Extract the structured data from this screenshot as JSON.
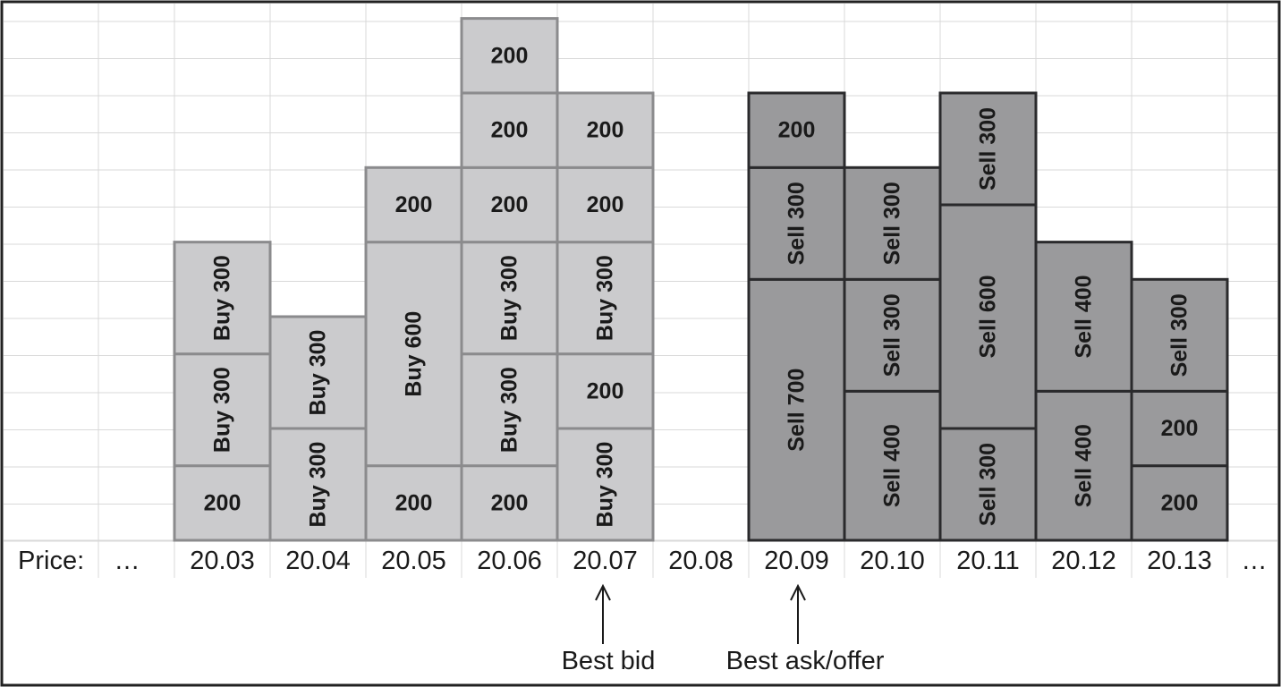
{
  "price_axis": {
    "label": "Price:",
    "left_ellipsis": "…",
    "right_ellipsis": "…",
    "prices": [
      "20.03",
      "20.04",
      "20.05",
      "20.06",
      "20.07",
      "20.08",
      "20.09",
      "20.10",
      "20.11",
      "20.12",
      "20.13"
    ]
  },
  "buy_color": "#cbcbcd",
  "sell_color": "#9a9a9c",
  "columns": [
    {
      "price": "20.03",
      "side": "buy",
      "orders": [
        {
          "label": "200",
          "size": 200
        },
        {
          "label": "Buy 300",
          "size": 300
        },
        {
          "label": "Buy 300",
          "size": 300
        }
      ]
    },
    {
      "price": "20.04",
      "side": "buy",
      "orders": [
        {
          "label": "Buy 300",
          "size": 300
        },
        {
          "label": "Buy 300",
          "size": 300
        }
      ]
    },
    {
      "price": "20.05",
      "side": "buy",
      "orders": [
        {
          "label": "200",
          "size": 200
        },
        {
          "label": "Buy 600",
          "size": 600
        },
        {
          "label": "200",
          "size": 200
        }
      ]
    },
    {
      "price": "20.06",
      "side": "buy",
      "orders": [
        {
          "label": "200",
          "size": 200
        },
        {
          "label": "Buy 300",
          "size": 300
        },
        {
          "label": "Buy 300",
          "size": 300
        },
        {
          "label": "200",
          "size": 200
        },
        {
          "label": "200",
          "size": 200
        },
        {
          "label": "200",
          "size": 200
        }
      ]
    },
    {
      "price": "20.07",
      "side": "buy",
      "orders": [
        {
          "label": "Buy 300",
          "size": 300
        },
        {
          "label": "200",
          "size": 200
        },
        {
          "label": "Buy 300",
          "size": 300
        },
        {
          "label": "200",
          "size": 200
        },
        {
          "label": "200",
          "size": 200
        }
      ]
    },
    {
      "price": "20.08",
      "side": "none",
      "orders": []
    },
    {
      "price": "20.09",
      "side": "sell",
      "orders": [
        {
          "label": "Sell 700",
          "size": 700
        },
        {
          "label": "Sell 300",
          "size": 300
        },
        {
          "label": "200",
          "size": 200
        }
      ]
    },
    {
      "price": "20.10",
      "side": "sell",
      "orders": [
        {
          "label": "Sell 400",
          "size": 400
        },
        {
          "label": "Sell 300",
          "size": 300
        },
        {
          "label": "Sell 300",
          "size": 300
        }
      ]
    },
    {
      "price": "20.11",
      "side": "sell",
      "orders": [
        {
          "label": "Sell 300",
          "size": 300
        },
        {
          "label": "Sell 600",
          "size": 600
        },
        {
          "label": "Sell 300",
          "size": 300
        }
      ]
    },
    {
      "price": "20.12",
      "side": "sell",
      "orders": [
        {
          "label": "Sell 400",
          "size": 400
        },
        {
          "label": "Sell 400",
          "size": 400
        }
      ]
    },
    {
      "price": "20.13",
      "side": "sell",
      "orders": [
        {
          "label": "200",
          "size": 200
        },
        {
          "label": "200",
          "size": 200
        },
        {
          "label": "Sell 300",
          "size": 300
        }
      ]
    }
  ],
  "annotations": [
    {
      "text": "Best bid",
      "points_to": "20.07"
    },
    {
      "text": "Best ask/offer",
      "points_to": "20.09"
    }
  ]
}
